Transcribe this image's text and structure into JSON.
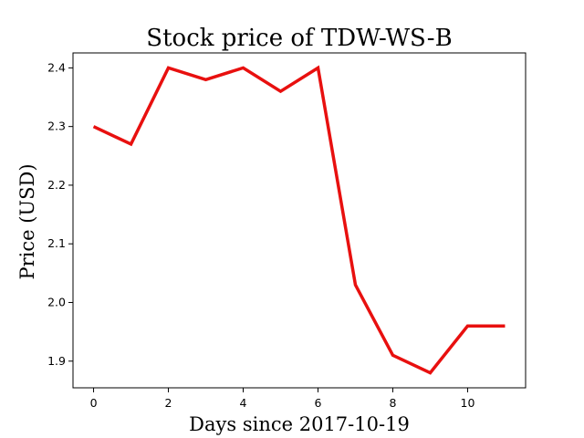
{
  "chart_data": {
    "type": "line",
    "title": "Stock price of TDW-WS-B",
    "xlabel": "Days since 2017-10-19",
    "ylabel": "Price (USD)",
    "x": [
      0,
      1,
      2,
      3,
      4,
      5,
      6,
      7,
      8,
      9,
      10,
      11
    ],
    "series": [
      {
        "values": [
          2.3,
          2.27,
          2.4,
          2.38,
          2.4,
          2.36,
          2.4,
          2.03,
          1.91,
          1.88,
          1.96,
          1.96
        ],
        "color": "#e8100f"
      }
    ],
    "xlim": [
      -0.55,
      11.55
    ],
    "ylim": [
      1.8545,
      2.4255
    ],
    "xticks": [
      0,
      2,
      4,
      6,
      8,
      10
    ],
    "xtick_labels": [
      "0",
      "2",
      "4",
      "6",
      "8",
      "10"
    ],
    "yticks": [
      1.9,
      2.0,
      2.1,
      2.2,
      2.3,
      2.4
    ],
    "ytick_labels": [
      "1.9",
      "2.0",
      "2.1",
      "2.2",
      "2.3",
      "2.4"
    ],
    "grid": false,
    "legend": false
  }
}
